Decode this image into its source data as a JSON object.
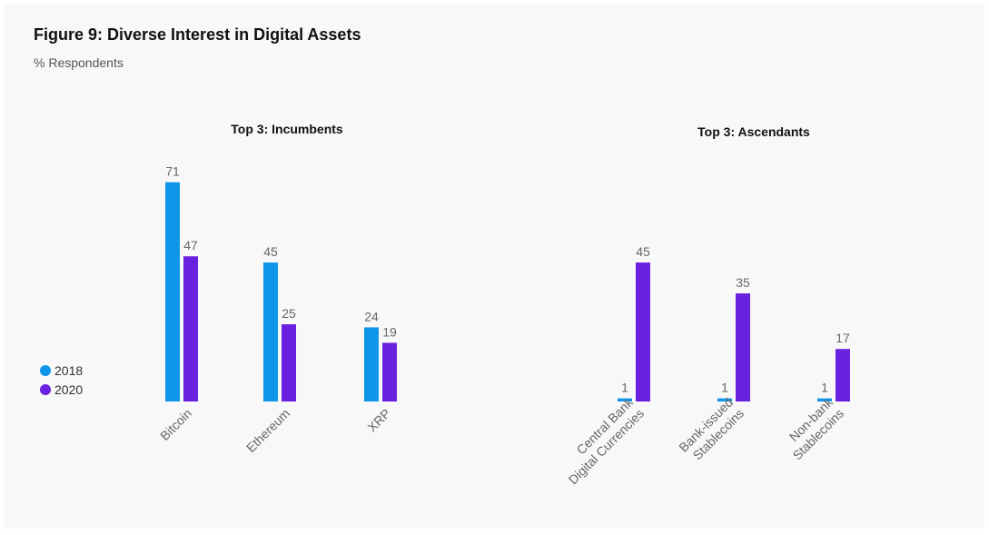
{
  "title": "Figure 9: Diverse Interest in Digital Assets",
  "subtitle": "% Respondents",
  "legend": [
    {
      "label": "2018",
      "color": "#0f96e8"
    },
    {
      "label": "2020",
      "color": "#6b21e0"
    }
  ],
  "chart_data": [
    {
      "type": "bar",
      "title": "Top 3: Incumbents",
      "categories": [
        [
          "Bitcoin"
        ],
        [
          "Ethereum"
        ],
        [
          "XRP"
        ]
      ],
      "series": [
        {
          "name": "2018",
          "values": [
            71,
            45,
            24
          ]
        },
        {
          "name": "2020",
          "values": [
            47,
            25,
            19
          ]
        }
      ],
      "ylim": [
        0,
        80
      ],
      "grid": false
    },
    {
      "type": "bar",
      "title": "Top 3: Ascendants",
      "categories": [
        [
          "Central Bank",
          "Digital Currencies"
        ],
        [
          "Bank-issued",
          "Stablecoins"
        ],
        [
          "Non-bank",
          "Stablecoins"
        ]
      ],
      "series": [
        {
          "name": "2018",
          "values": [
            1,
            1,
            1
          ]
        },
        {
          "name": "2020",
          "values": [
            45,
            35,
            17
          ]
        }
      ],
      "ylim": [
        0,
        80
      ],
      "grid": false
    }
  ]
}
